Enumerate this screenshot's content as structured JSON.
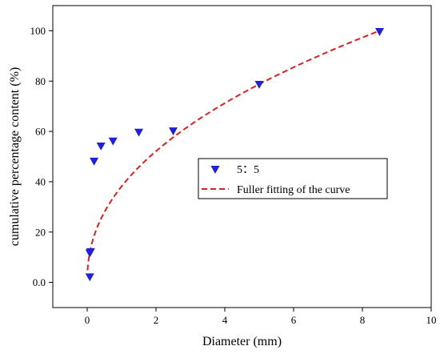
{
  "chart_data": {
    "type": "scatter",
    "title": "",
    "xlabel": "Diameter (mm)",
    "ylabel": "cumulative percentage content (%)",
    "xlim": [
      -1,
      10
    ],
    "ylim": [
      -10,
      110
    ],
    "x_ticks": [
      0,
      2,
      4,
      6,
      8,
      10
    ],
    "x_tick_labels": [
      "0",
      "2",
      "4",
      "6",
      "8",
      "10"
    ],
    "y_ticks": [
      0,
      20,
      40,
      60,
      80,
      100
    ],
    "y_tick_labels": [
      "0.0",
      "20",
      "40",
      "60",
      "80",
      "100"
    ],
    "grid": false,
    "legend_position": "center-right",
    "series": [
      {
        "name": "5：5",
        "kind": "scatter",
        "marker": "triangle-down",
        "color": "#1f1fe0",
        "points": [
          {
            "x": 0.075,
            "y": 2
          },
          {
            "x": 0.075,
            "y": 11.5
          },
          {
            "x": 0.1,
            "y": 12
          },
          {
            "x": 0.2,
            "y": 48
          },
          {
            "x": 0.4,
            "y": 54
          },
          {
            "x": 0.75,
            "y": 56
          },
          {
            "x": 1.5,
            "y": 59.5
          },
          {
            "x": 2.5,
            "y": 60
          },
          {
            "x": 5.0,
            "y": 78.5
          },
          {
            "x": 8.5,
            "y": 99.5
          }
        ]
      },
      {
        "name": "Fuller fitting of the curve",
        "kind": "line",
        "style": "dashed",
        "color": "#e02020",
        "function": "power",
        "d_max": 8.5,
        "exponent": 0.45,
        "x_range": [
          0.01,
          8.5
        ]
      }
    ]
  }
}
